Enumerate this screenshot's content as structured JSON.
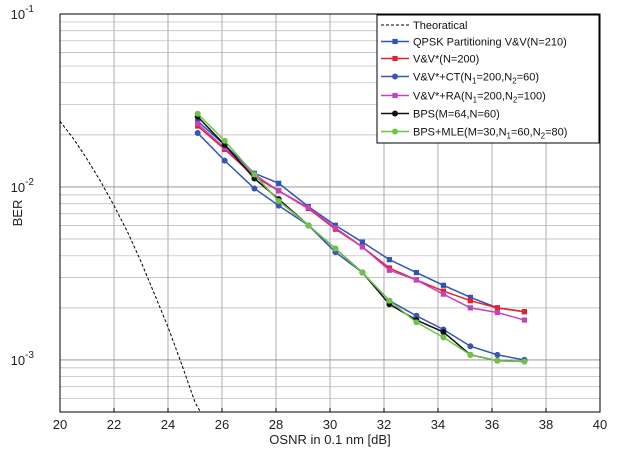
{
  "chart_data": {
    "type": "line",
    "title": "",
    "xlabel": "OSNR in 0.1 nm  [dB]",
    "ylabel": "BER",
    "xlim": [
      20,
      40
    ],
    "ylim": [
      0.0005,
      0.1
    ],
    "yscale": "log",
    "grid": true,
    "legend_position": "top-right",
    "x_ticks": [
      20,
      22,
      24,
      26,
      28,
      30,
      32,
      34,
      36,
      38,
      40
    ],
    "x_tick_labels": [
      "20",
      "22",
      "24",
      "26",
      "28",
      "30",
      "32",
      "34",
      "36",
      "38",
      "40"
    ],
    "y_ticks": [
      0.1,
      0.01,
      0.001
    ],
    "y_tick_labels": [
      {
        "base": "10",
        "exp": "-1"
      },
      {
        "base": "10",
        "exp": "-2"
      },
      {
        "base": "10",
        "exp": "-3"
      }
    ],
    "series": [
      {
        "name": "Theoratical",
        "color": "#000000",
        "dashed": true,
        "marker": "none",
        "x": [
          20.0,
          20.5,
          21.0,
          21.5,
          22.0,
          22.5,
          23.0,
          23.5,
          24.0,
          24.5,
          25.0,
          25.2
        ],
        "y": [
          0.024,
          0.019,
          0.0145,
          0.0108,
          0.0078,
          0.0055,
          0.0037,
          0.0024,
          0.00155,
          0.00095,
          0.00057,
          0.0005
        ]
      },
      {
        "name": "QPSK Partitioning V&V(N=210)",
        "color": "#2f55b4",
        "dashed": false,
        "marker": "square",
        "x": [
          25.1,
          26.1,
          27.2,
          28.1,
          29.2,
          30.2,
          31.2,
          32.2,
          33.2,
          34.2,
          35.2,
          36.2,
          37.2
        ],
        "y": [
          0.024,
          0.0175,
          0.012,
          0.0105,
          0.0077,
          0.006,
          0.0048,
          0.0038,
          0.0032,
          0.0027,
          0.0023,
          0.002,
          0.0019
        ]
      },
      {
        "name": "V&V*(N=200)",
        "color": "#e8202a",
        "dashed": false,
        "marker": "square",
        "x": [
          25.1,
          26.1,
          27.2,
          28.1,
          29.2,
          30.2,
          31.2,
          32.2,
          33.2,
          34.2,
          35.2,
          36.2,
          37.2
        ],
        "y": [
          0.0225,
          0.0165,
          0.0115,
          0.0095,
          0.0075,
          0.0057,
          0.0045,
          0.0034,
          0.0029,
          0.0025,
          0.0022,
          0.002,
          0.0019
        ]
      },
      {
        "name": "V&V*+CT(N1=200,N2=60)",
        "color": "#3857b0",
        "dashed": false,
        "marker": "circle",
        "x": [
          25.1,
          26.1,
          27.2,
          28.1,
          29.2,
          30.2,
          31.2,
          32.2,
          33.2,
          34.2,
          35.2,
          36.2,
          37.2
        ],
        "y": [
          0.0205,
          0.0142,
          0.0098,
          0.0078,
          0.006,
          0.0042,
          0.0032,
          0.0022,
          0.0018,
          0.0015,
          0.0012,
          0.00107,
          0.001
        ]
      },
      {
        "name": "V&V*+RA(N1=200,N2=100)",
        "color": "#c243bd",
        "dashed": false,
        "marker": "square",
        "x": [
          25.1,
          26.1,
          27.2,
          28.1,
          29.2,
          30.2,
          31.2,
          32.2,
          33.2,
          34.2,
          35.2,
          36.2,
          37.2
        ],
        "y": [
          0.0232,
          0.0168,
          0.0118,
          0.0095,
          0.0076,
          0.0058,
          0.0045,
          0.0033,
          0.0029,
          0.0024,
          0.002,
          0.00188,
          0.0017
        ]
      },
      {
        "name": "BPS(M=64,N=60)",
        "color": "#111111",
        "dashed": false,
        "marker": "circle",
        "x": [
          25.1,
          26.1,
          27.2,
          28.1,
          29.2,
          30.2,
          31.2,
          32.2,
          33.2,
          34.2,
          35.2,
          36.2,
          37.2
        ],
        "y": [
          0.0255,
          0.0175,
          0.0112,
          0.0085,
          0.006,
          0.0044,
          0.0032,
          0.0021,
          0.0017,
          0.00145,
          0.00107,
          0.00099,
          0.00098
        ]
      },
      {
        "name": "BPS+MLE(M=30,N1=60,N2=80)",
        "color": "#6dc44a",
        "dashed": false,
        "marker": "circle",
        "x": [
          25.1,
          26.1,
          27.2,
          28.1,
          29.2,
          30.2,
          31.2,
          32.2,
          33.2,
          34.2,
          35.2,
          36.2,
          37.2
        ],
        "y": [
          0.0265,
          0.0185,
          0.0118,
          0.0083,
          0.006,
          0.0044,
          0.0032,
          0.0022,
          0.00165,
          0.00135,
          0.00107,
          0.00099,
          0.00098
        ]
      }
    ]
  },
  "legend": {
    "items": [
      {
        "text": "Theoratical",
        "parts": [
          {
            "t": "Theoratical"
          }
        ]
      },
      {
        "text": "QPSK Partitioning V&V(N=210)",
        "parts": [
          {
            "t": "QPSK Partitioning V&V(N=210)"
          }
        ]
      },
      {
        "text": "V&V*(N=200)",
        "parts": [
          {
            "t": "V&V*(N=200)"
          }
        ]
      },
      {
        "text": "V&V*+CT(N1=200,N2=60)",
        "parts": [
          {
            "t": "V&V*+CT(N"
          },
          {
            "t": "1",
            "sub": true
          },
          {
            "t": "=200,N"
          },
          {
            "t": "2",
            "sub": true
          },
          {
            "t": "=60)"
          }
        ]
      },
      {
        "text": "V&V*+RA(N1=200,N2=100)",
        "parts": [
          {
            "t": "V&V*+RA(N"
          },
          {
            "t": "1",
            "sub": true
          },
          {
            "t": "=200,N"
          },
          {
            "t": "2",
            "sub": true
          },
          {
            "t": "=100)"
          }
        ]
      },
      {
        "text": "BPS(M=64,N=60)",
        "parts": [
          {
            "t": "BPS(M=64,N=60)"
          }
        ]
      },
      {
        "text": "BPS+MLE(M=30,N1=60,N2=80)",
        "parts": [
          {
            "t": "BPS+MLE(M=30,N"
          },
          {
            "t": "1",
            "sub": true
          },
          {
            "t": "=60,N"
          },
          {
            "t": "2",
            "sub": true
          },
          {
            "t": "=80)"
          }
        ]
      }
    ]
  }
}
